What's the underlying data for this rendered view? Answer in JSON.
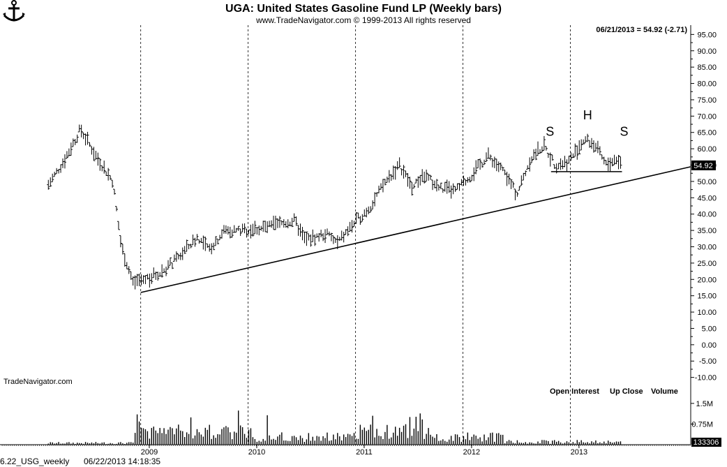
{
  "header": {
    "title": "UGA:  United States Gasoline Fund LP  (Weekly bars)",
    "copyright": "www.TradeNavigator.com © 1999-2013 All rights reserved",
    "last_quote": "06/21/2013 = 54.92 (-2.71)",
    "watermark": "TradeNavigator.com",
    "logo": "anchor-logo-icon"
  },
  "footer": {
    "file_label": "6.22_USG_weekly",
    "timestamp": "06/22/2013 14:18:35"
  },
  "legend": {
    "open_interest": "Open Interest",
    "up_close": "Up Close",
    "volume": "Volume"
  },
  "chart_data": {
    "type": "ohlc",
    "interval": "weekly",
    "ylim": [
      -12,
      97
    ],
    "y_ticks": [
      "95.00",
      "90.00",
      "85.00",
      "80.00",
      "75.00",
      "70.00",
      "65.00",
      "60.00",
      "55.00",
      "50.00",
      "45.00",
      "40.00",
      "35.00",
      "30.00",
      "25.00",
      "20.00",
      "15.00",
      "10.00",
      "5.00",
      "0.00",
      "-5.00",
      "-10.00"
    ],
    "x_ticks": [
      "2009",
      "2010",
      "2011",
      "2012",
      "2013"
    ],
    "x_tick_years": [
      2009,
      2010,
      2011,
      2012,
      2013
    ],
    "xlim_years": [
      2007.61,
      2014.04
    ],
    "year_dividers": [
      2008.92,
      2009.92,
      2010.92,
      2011.92,
      2012.92
    ],
    "last_price_label": "54.92",
    "anchors": [
      [
        2008.06,
        49
      ],
      [
        2008.2,
        56
      ],
      [
        2008.36,
        66
      ],
      [
        2008.5,
        58
      ],
      [
        2008.66,
        50
      ],
      [
        2008.74,
        30
      ],
      [
        2008.85,
        19
      ],
      [
        2008.95,
        20
      ],
      [
        2009.1,
        22
      ],
      [
        2009.25,
        26
      ],
      [
        2009.45,
        33
      ],
      [
        2009.55,
        29
      ],
      [
        2009.7,
        35
      ],
      [
        2009.9,
        35
      ],
      [
        2010.1,
        36
      ],
      [
        2010.35,
        38
      ],
      [
        2010.45,
        32
      ],
      [
        2010.65,
        34
      ],
      [
        2010.75,
        31
      ],
      [
        2010.9,
        37
      ],
      [
        2011.05,
        42
      ],
      [
        2011.2,
        50
      ],
      [
        2011.33,
        55
      ],
      [
        2011.45,
        48
      ],
      [
        2011.55,
        52
      ],
      [
        2011.7,
        48
      ],
      [
        2011.85,
        47
      ],
      [
        2012.0,
        52
      ],
      [
        2012.15,
        58
      ],
      [
        2012.3,
        53
      ],
      [
        2012.42,
        46
      ],
      [
        2012.55,
        57
      ],
      [
        2012.67,
        61
      ],
      [
        2012.78,
        55
      ],
      [
        2012.9,
        56
      ],
      [
        2013.05,
        63
      ],
      [
        2013.15,
        61
      ],
      [
        2013.25,
        55
      ],
      [
        2013.35,
        57
      ],
      [
        2013.4,
        55
      ]
    ],
    "volume_ylim": [
      0,
      1.7
    ],
    "volume_ticks": [
      "1.5M",
      "0.75M"
    ],
    "volume_last_label": "133306",
    "trendlines": [
      {
        "x": [
          2008.92,
          2014.04
        ],
        "y": [
          16,
          54.5
        ]
      },
      {
        "x": [
          2012.74,
          2013.4
        ],
        "y": [
          53,
          53
        ]
      }
    ],
    "annotations": [
      {
        "text": "S",
        "x": 2012.73,
        "y": 64
      },
      {
        "text": "H",
        "x": 2013.08,
        "y": 69
      },
      {
        "text": "S",
        "x": 2013.42,
        "y": 64
      }
    ]
  }
}
